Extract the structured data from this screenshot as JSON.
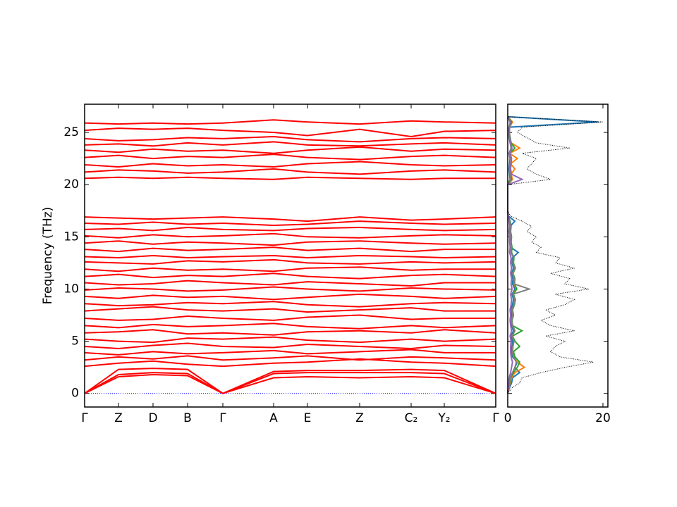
{
  "chart_data": [
    {
      "type": "line",
      "ylabel": "Frequency (THz)",
      "x": [
        0,
        0.48,
        0.97,
        1.46,
        1.96,
        2.68,
        3.16,
        3.9,
        4.63,
        5.1,
        5.83
      ],
      "xlim": [
        0,
        5.83
      ],
      "xticks": [
        {
          "value": 0,
          "label": "Γ"
        },
        {
          "value": 0.48,
          "label": "Z"
        },
        {
          "value": 0.97,
          "label": "D"
        },
        {
          "value": 1.46,
          "label": "B"
        },
        {
          "value": 1.96,
          "label": "Γ"
        },
        {
          "value": 2.68,
          "label": "A"
        },
        {
          "value": 3.16,
          "label": "E"
        },
        {
          "value": 3.9,
          "label": "Z"
        },
        {
          "value": 4.63,
          "label": "C₂"
        },
        {
          "value": 5.1,
          "label": "Y₂"
        },
        {
          "value": 5.83,
          "label": "Γ"
        }
      ],
      "ylim": [
        -1.3,
        27.7
      ],
      "yticks": [
        0,
        5,
        10,
        15,
        20,
        25
      ],
      "hline": {
        "value": 0,
        "color": "#0000ff"
      },
      "color": "#ff0000",
      "series": [
        {
          "values": [
            0,
            1.6,
            1.8,
            1.7,
            0,
            1.5,
            1.6,
            1.5,
            1.6,
            1.5,
            0
          ]
        },
        {
          "values": [
            0,
            1.8,
            2.0,
            1.9,
            0,
            1.9,
            2.0,
            2.0,
            2.0,
            1.9,
            0
          ]
        },
        {
          "values": [
            0,
            2.3,
            2.4,
            2.3,
            0,
            2.1,
            2.2,
            2.2,
            2.3,
            2.2,
            0
          ]
        },
        {
          "values": [
            2.6,
            2.9,
            3.1,
            2.8,
            2.6,
            2.9,
            3.0,
            3.3,
            3.0,
            2.9,
            2.6
          ]
        },
        {
          "values": [
            3.2,
            3.5,
            3.3,
            3.6,
            3.2,
            3.4,
            3.6,
            3.2,
            3.5,
            3.4,
            3.2
          ]
        },
        {
          "values": [
            3.9,
            3.7,
            4.0,
            3.8,
            3.9,
            4.1,
            3.8,
            4.0,
            4.2,
            3.9,
            3.9
          ]
        },
        {
          "values": [
            4.5,
            4.3,
            4.6,
            4.8,
            4.5,
            4.4,
            4.7,
            4.5,
            4.3,
            4.6,
            4.5
          ]
        },
        {
          "values": [
            5.2,
            5.0,
            4.9,
            5.3,
            5.2,
            5.4,
            5.1,
            4.9,
            5.2,
            5.0,
            5.2
          ]
        },
        {
          "values": [
            5.8,
            5.9,
            6.1,
            5.7,
            5.8,
            5.6,
            5.9,
            6.0,
            5.8,
            6.1,
            5.8
          ]
        },
        {
          "values": [
            6.5,
            6.3,
            6.6,
            6.4,
            6.5,
            6.7,
            6.4,
            6.2,
            6.5,
            6.3,
            6.5
          ]
        },
        {
          "values": [
            7.2,
            7.0,
            7.1,
            7.4,
            7.2,
            7.0,
            7.3,
            7.5,
            7.1,
            7.2,
            7.2
          ]
        },
        {
          "values": [
            7.9,
            8.1,
            8.3,
            8.0,
            7.9,
            8.1,
            7.8,
            8.0,
            8.2,
            7.9,
            7.9
          ]
        },
        {
          "values": [
            8.6,
            8.4,
            8.5,
            8.7,
            8.6,
            8.8,
            8.5,
            8.3,
            8.6,
            8.7,
            8.6
          ]
        },
        {
          "values": [
            9.3,
            9.1,
            9.4,
            9.2,
            9.3,
            9.0,
            9.2,
            9.5,
            9.3,
            9.1,
            9.3
          ]
        },
        {
          "values": [
            9.9,
            10.1,
            10.0,
            9.8,
            9.9,
            10.2,
            10.0,
            9.8,
            10.1,
            10.0,
            9.9
          ]
        },
        {
          "values": [
            10.6,
            10.4,
            10.5,
            10.8,
            10.6,
            10.4,
            10.7,
            10.5,
            10.3,
            10.6,
            10.6
          ]
        },
        {
          "values": [
            11.2,
            11.4,
            11.1,
            11.3,
            11.2,
            11.5,
            11.2,
            11.0,
            11.3,
            11.4,
            11.2
          ]
        },
        {
          "values": [
            11.9,
            11.7,
            12.0,
            11.8,
            11.9,
            11.7,
            12.0,
            12.1,
            11.8,
            11.9,
            11.9
          ]
        },
        {
          "values": [
            12.6,
            12.5,
            12.4,
            12.7,
            12.6,
            12.8,
            12.5,
            12.4,
            12.6,
            12.5,
            12.6
          ]
        },
        {
          "values": [
            13.1,
            13.0,
            13.2,
            13.0,
            13.1,
            13.2,
            13.0,
            13.2,
            13.1,
            13.0,
            13.1
          ]
        },
        {
          "values": [
            13.8,
            13.6,
            13.9,
            13.7,
            13.8,
            14.0,
            13.7,
            13.9,
            13.6,
            13.8,
            13.8
          ]
        },
        {
          "values": [
            14.4,
            14.6,
            14.3,
            14.5,
            14.4,
            14.2,
            14.5,
            14.6,
            14.4,
            14.3,
            14.4
          ]
        },
        {
          "values": [
            15.1,
            14.9,
            15.2,
            15.0,
            15.1,
            15.3,
            15.0,
            14.9,
            15.1,
            15.2,
            15.1
          ]
        },
        {
          "values": [
            15.7,
            15.8,
            15.6,
            15.9,
            15.7,
            15.6,
            15.8,
            15.9,
            15.7,
            15.6,
            15.7
          ]
        },
        {
          "values": [
            16.3,
            16.2,
            16.4,
            16.2,
            16.3,
            16.1,
            16.2,
            16.5,
            16.3,
            16.2,
            16.3
          ]
        },
        {
          "values": [
            16.9,
            16.8,
            16.7,
            16.8,
            16.9,
            16.7,
            16.5,
            16.9,
            16.6,
            16.7,
            16.9
          ]
        },
        {
          "values": [
            20.6,
            20.7,
            20.6,
            20.7,
            20.6,
            20.5,
            20.7,
            20.6,
            20.5,
            20.6,
            20.6
          ]
        },
        {
          "values": [
            21.2,
            21.4,
            21.3,
            21.1,
            21.2,
            21.5,
            21.2,
            21.0,
            21.3,
            21.4,
            21.2
          ]
        },
        {
          "values": [
            21.9,
            21.7,
            22.0,
            21.8,
            21.9,
            21.7,
            22.0,
            22.2,
            21.9,
            21.8,
            21.9
          ]
        },
        {
          "values": [
            22.6,
            22.8,
            22.5,
            22.7,
            22.6,
            22.9,
            22.6,
            22.4,
            22.7,
            22.8,
            22.6
          ]
        },
        {
          "values": [
            23.3,
            23.1,
            23.4,
            23.2,
            23.3,
            23.0,
            23.3,
            23.6,
            23.2,
            23.4,
            23.3
          ]
        },
        {
          "values": [
            23.8,
            23.9,
            23.7,
            24.0,
            23.8,
            24.1,
            23.8,
            23.7,
            23.9,
            24.0,
            23.8
          ]
        },
        {
          "values": [
            24.4,
            24.2,
            24.3,
            24.5,
            24.4,
            24.6,
            24.3,
            24.1,
            24.4,
            24.5,
            24.4
          ]
        },
        {
          "values": [
            25.2,
            25.4,
            25.3,
            25.4,
            25.2,
            25.0,
            24.7,
            25.3,
            24.6,
            25.1,
            25.2
          ]
        },
        {
          "values": [
            25.9,
            25.8,
            25.9,
            25.8,
            25.9,
            26.2,
            26.0,
            25.8,
            26.1,
            26.0,
            25.9
          ]
        }
      ]
    },
    {
      "type": "line",
      "orientation": "horizontal",
      "y": [
        0,
        0.5,
        1,
        1.5,
        2,
        2.5,
        3,
        3.5,
        4,
        4.5,
        5,
        5.5,
        6,
        6.5,
        7,
        7.5,
        8,
        8.5,
        9,
        9.5,
        10,
        10.5,
        11,
        11.5,
        12,
        12.5,
        13,
        13.5,
        14,
        14.5,
        15,
        15.5,
        16,
        16.5,
        17,
        17.5,
        18,
        18.5,
        19,
        19.5,
        20,
        20.5,
        21,
        21.5,
        22,
        22.5,
        23,
        23.5,
        24,
        24.5,
        25,
        25.5,
        26,
        26.5
      ],
      "xlim": [
        0,
        21.04
      ],
      "xticks": [
        0,
        20
      ],
      "ylim": [
        -1.3,
        27.7
      ],
      "yticks": [
        0,
        5,
        10,
        15,
        20,
        25
      ],
      "series": [
        {
          "color": "#1f77b4",
          "values": [
            0,
            0.3,
            0.8,
            1,
            2.5,
            1.5,
            2,
            1,
            0.8,
            0.9,
            1,
            0.7,
            1.2,
            0.8,
            0.6,
            0.9,
            0.7,
            1,
            1.2,
            0.9,
            1.5,
            1,
            1.1,
            0.8,
            1.2,
            0.9,
            1,
            2.2,
            0.6,
            0.5,
            0.5,
            0.4,
            0.5,
            1.5,
            0.1,
            0,
            0,
            0,
            0,
            0,
            0,
            0.5,
            0.4,
            0.3,
            0.4,
            0.5,
            0.3,
            0.8,
            0.5,
            0.3,
            0.2,
            0.3,
            19,
            0
          ]
        },
        {
          "color": "#ff7f0e",
          "values": [
            0,
            0.2,
            0.5,
            0.8,
            1.5,
            3.5,
            2,
            1.2,
            1,
            1.1,
            1.3,
            0.9,
            1.5,
            1,
            0.8,
            1.1,
            0.9,
            1.3,
            1.5,
            1.1,
            1.8,
            1.3,
            1.4,
            1,
            1.5,
            1.1,
            1.2,
            0.7,
            0.8,
            0.6,
            0.7,
            0.5,
            0.6,
            0.4,
            0.1,
            0,
            0,
            0,
            0,
            0,
            0,
            1,
            0.7,
            1.5,
            0.6,
            2,
            0.4,
            2.5,
            0.7,
            0.5,
            0.3,
            0.4,
            1,
            0
          ]
        },
        {
          "color": "#2ca02c",
          "values": [
            0,
            0.1,
            0.4,
            0.6,
            1.2,
            2,
            2.5,
            1.5,
            1.2,
            2.5,
            1.5,
            1,
            3,
            1,
            0.9,
            1.2,
            1,
            1.4,
            1.6,
            1.2,
            1.9,
            1.4,
            1.5,
            1.1,
            1.6,
            1.2,
            1.3,
            0.8,
            0.9,
            0.7,
            0.8,
            0.6,
            0.7,
            0.5,
            0.1,
            0,
            0,
            0,
            0,
            0,
            0,
            0.8,
            0.6,
            0.5,
            0.6,
            0.7,
            0.4,
            1.5,
            0.7,
            0.5,
            0.3,
            0.4,
            0.8,
            0
          ]
        },
        {
          "color": "#7f7f7f",
          "values": [
            0,
            0.1,
            0.3,
            0.5,
            1,
            1.5,
            1.8,
            1.2,
            1,
            1.1,
            1.3,
            0.9,
            1.5,
            1,
            0.8,
            1.1,
            0.9,
            1.3,
            1.5,
            1.1,
            4.5,
            1.3,
            1.4,
            1,
            1.5,
            1.1,
            1.2,
            0.7,
            0.8,
            0.6,
            0.7,
            0.5,
            0.6,
            0.4,
            0.1,
            0,
            0,
            0,
            0,
            0,
            0,
            0.6,
            0.5,
            0.4,
            0.5,
            0.6,
            0.3,
            0.7,
            0.5,
            0.3,
            0.2,
            0.3,
            0.6,
            0
          ]
        },
        {
          "color": "#9467bd",
          "values": [
            0,
            0.1,
            0.2,
            0.3,
            0.6,
            0.8,
            1,
            0.7,
            0.6,
            0.6,
            0.7,
            0.5,
            0.8,
            0.6,
            0.5,
            0.6,
            0.5,
            0.7,
            0.8,
            0.6,
            0.9,
            0.7,
            0.8,
            0.6,
            0.8,
            0.6,
            0.7,
            0.4,
            0.5,
            0.4,
            0.4,
            0.3,
            0.4,
            0.3,
            0.1,
            0,
            0,
            0,
            0,
            0,
            0,
            3,
            0.8,
            0.6,
            0.7,
            0.8,
            0.5,
            0.9,
            0.6,
            0.4,
            0.3,
            0.4,
            0.5,
            0
          ]
        },
        {
          "color": "#000000",
          "dash": "dotted",
          "values": [
            0,
            0.8,
            2.5,
            3,
            7,
            12,
            18,
            11,
            9,
            10,
            12,
            8,
            14,
            9,
            7,
            10,
            8,
            12,
            14,
            10,
            17,
            12,
            13,
            9,
            14,
            10,
            11,
            6,
            7,
            5,
            6,
            4,
            5,
            3,
            0.5,
            0,
            0,
            0,
            0,
            0,
            0,
            9,
            6,
            4,
            5,
            6,
            3,
            13,
            6,
            4,
            2,
            3,
            20,
            0
          ]
        }
      ]
    }
  ]
}
